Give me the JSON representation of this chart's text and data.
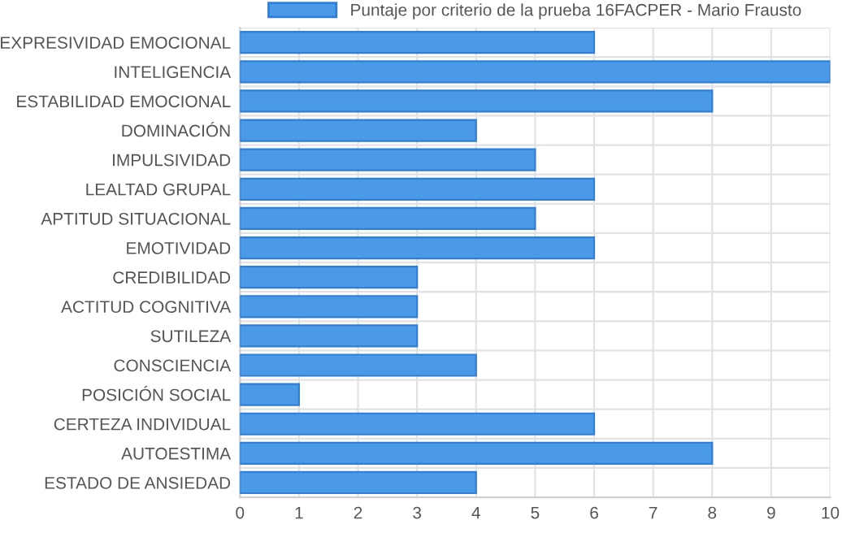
{
  "chart_data": {
    "type": "bar",
    "orientation": "horizontal",
    "categories": [
      "EXPRESIVIDAD EMOCIONAL",
      "INTELIGENCIA",
      "ESTABILIDAD EMOCIONAL",
      "DOMINACIÓN",
      "IMPULSIVIDAD",
      "LEALTAD GRUPAL",
      "APTITUD SITUACIONAL",
      "EMOTIVIDAD",
      "CREDIBILIDAD",
      "ACTITUD COGNITIVA",
      "SUTILEZA",
      "CONSCIENCIA",
      "POSICIÓN SOCIAL",
      "CERTEZA INDIVIDUAL",
      "AUTOESTIMA",
      "ESTADO DE ANSIEDAD"
    ],
    "series": [
      {
        "name": "Puntaje por criterio de la prueba 16FACPER - Mario Frausto",
        "color": "#4a9ae8",
        "values": [
          6,
          10,
          8,
          4,
          5,
          6,
          5,
          6,
          3,
          3,
          3,
          4,
          1,
          6,
          8,
          4
        ]
      }
    ],
    "xlim": [
      0,
      10
    ],
    "xticks": [
      0,
      1,
      2,
      3,
      4,
      5,
      6,
      7,
      8,
      9,
      10
    ],
    "grid": true,
    "legend": "top"
  }
}
